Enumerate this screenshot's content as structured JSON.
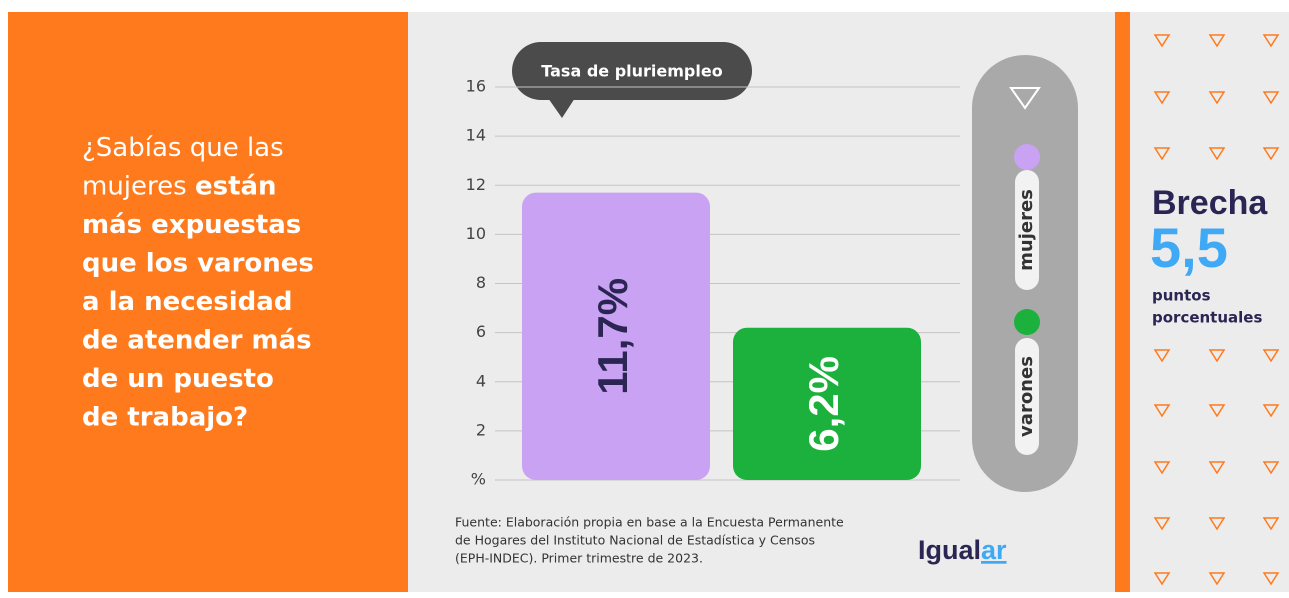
{
  "left": {
    "lines": [
      [
        {
          "text": "¿Sabías que las",
          "bold": false
        }
      ],
      [
        {
          "text": "mujeres ",
          "bold": false
        },
        {
          "text": "están",
          "bold": true
        }
      ],
      [
        {
          "text": "más expuestas",
          "bold": true
        }
      ],
      [
        {
          "text": "que los varones",
          "bold": true
        }
      ],
      [
        {
          "text": "a la necesidad",
          "bold": true
        }
      ],
      [
        {
          "text": "de atender más",
          "bold": true
        }
      ],
      [
        {
          "text": "de un puesto",
          "bold": true
        }
      ],
      [
        {
          "text": "de trabajo?",
          "bold": true
        }
      ]
    ]
  },
  "chart_data": {
    "type": "bar",
    "annotation": "Tasa de pluriempleo",
    "categories": [
      "mujeres",
      "varones"
    ],
    "values": [
      11.7,
      6.2
    ],
    "value_labels": [
      "11,7%",
      "6,2%"
    ],
    "colors": [
      "#c9a2f4",
      "#1bb13c"
    ],
    "value_label_colors": [
      "#2a2552",
      "#ffffff"
    ],
    "ylim": [
      0,
      16
    ],
    "yticks": [
      {
        "value": 0,
        "label": "%"
      },
      2,
      4,
      6,
      8,
      10,
      12,
      14,
      16
    ],
    "grid": true
  },
  "source": [
    "Fuente: Elaboración propia en base a la Encuesta Permanente",
    "de Hogares del Instituto Nacional de Estadística y Censos",
    "(EPH-INDEC). Primer trimestre de 2023."
  ],
  "logo": [
    "Igual",
    "ar"
  ],
  "right": {
    "title": "Brecha",
    "value": "5,5",
    "unit_lines": [
      "puntos",
      "porcentuales"
    ]
  }
}
